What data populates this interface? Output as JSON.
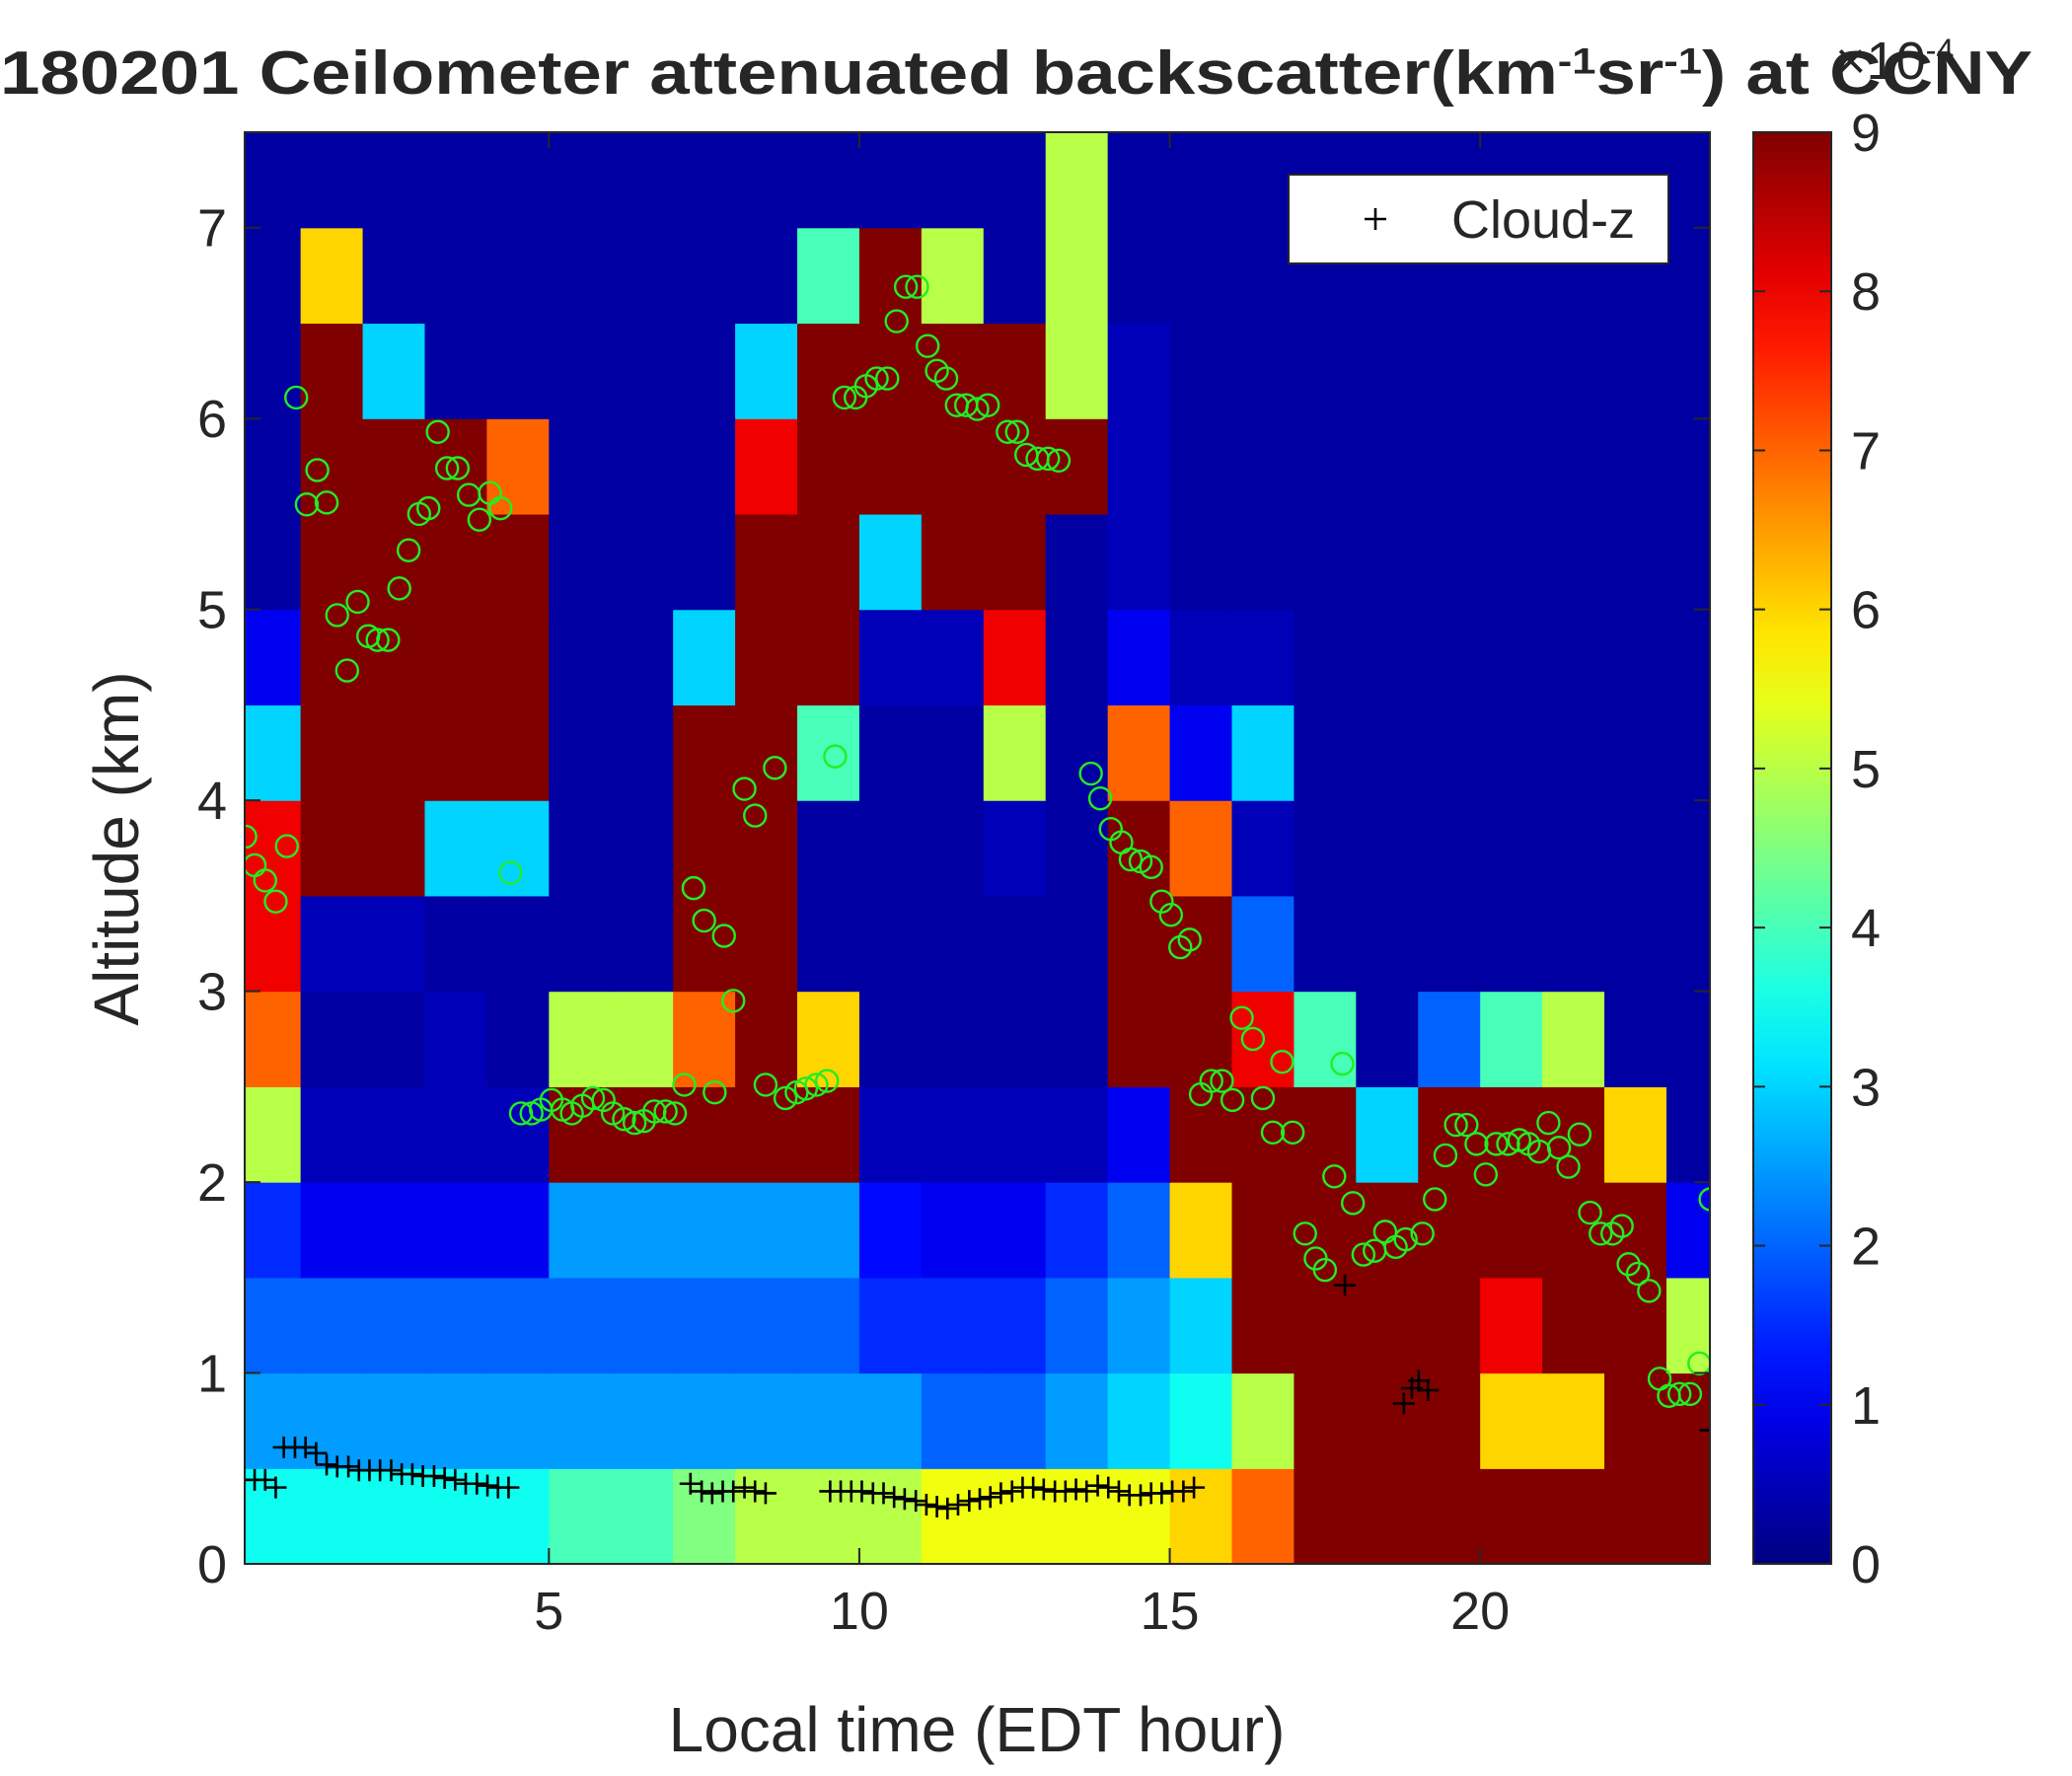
{
  "chart_data": {
    "type": "heatmap",
    "title": [
      "180201 Ceilometer attenuated backscatter(km",
      "-1",
      "sr",
      "-1",
      ") at CCNY"
    ],
    "x_label": "Local time (EDT hour)",
    "y_label": "Altitude (km)",
    "xlim": [
      0.1,
      23.7
    ],
    "xticks": [
      5,
      10,
      15,
      20
    ],
    "ylim": [
      0,
      7.5
    ],
    "yticks": [
      0,
      1,
      2,
      3,
      4,
      5,
      6,
      7
    ],
    "colormap": "jet",
    "clim": [
      0,
      9
    ],
    "cticks": [
      0,
      1,
      2,
      3,
      4,
      5,
      6,
      7,
      8,
      9
    ],
    "colorbar_label": [
      "×10",
      "-4"
    ],
    "xbins": [
      0,
      1,
      2,
      3,
      4,
      5,
      6,
      7,
      8,
      9,
      10,
      11,
      12,
      13,
      14,
      15,
      16,
      17,
      18,
      19,
      20,
      21,
      22,
      23,
      24
    ],
    "ybins": [
      0,
      0.5,
      1,
      1.5,
      2,
      2.5,
      3,
      3.5,
      4,
      4.5,
      5,
      5.5,
      6,
      6.5,
      7,
      7.5
    ],
    "z": [
      [
        3.5,
        3.5,
        3.5,
        3.5,
        3.5,
        4,
        4,
        4.5,
        5,
        5,
        5,
        5.5,
        5.5,
        5.5,
        5.5,
        6,
        7,
        9,
        9,
        9,
        9,
        9,
        9,
        9
      ],
      [
        2.5,
        2.5,
        2.5,
        2.5,
        2.5,
        2.5,
        2.5,
        2.5,
        2.5,
        2.5,
        2.5,
        2,
        2,
        2.5,
        3,
        3.5,
        5,
        9,
        9,
        9,
        6,
        6,
        9,
        9
      ],
      [
        2,
        2,
        2,
        2,
        2,
        2,
        2,
        2,
        2,
        2,
        1.5,
        1.5,
        1.5,
        2,
        2.5,
        3,
        9,
        9,
        9,
        9,
        8,
        9,
        9,
        5
      ],
      [
        1.5,
        1,
        1,
        1,
        1,
        2.5,
        2.5,
        2.5,
        2.5,
        2.5,
        1.2,
        1,
        1,
        1.5,
        2,
        6,
        9,
        9,
        9,
        9,
        9,
        9,
        9,
        1
      ],
      [
        5,
        0.5,
        0.5,
        0.5,
        0.5,
        9,
        9,
        9,
        9,
        9,
        0.5,
        0.5,
        0.5,
        0.5,
        1,
        9,
        9,
        9,
        3,
        9,
        9,
        9,
        6,
        0.3
      ],
      [
        7,
        0.3,
        0.3,
        0.5,
        0.3,
        5,
        5,
        7,
        9,
        6,
        0.3,
        0.3,
        0.3,
        0.3,
        9,
        9,
        8,
        4,
        0.3,
        2,
        4,
        5,
        0.3,
        0.3
      ],
      [
        8,
        0.5,
        0.5,
        0.3,
        0.3,
        0.3,
        0.3,
        9,
        9,
        0.3,
        0.3,
        0.3,
        0.3,
        0.3,
        9,
        9,
        2,
        0.3,
        0.3,
        0.3,
        0.3,
        0.3,
        0.3,
        0.3
      ],
      [
        8,
        9,
        9,
        3,
        3,
        0.3,
        0.3,
        9,
        9,
        0.3,
        0.3,
        0.3,
        0.5,
        0.3,
        9,
        7,
        0.5,
        0.3,
        0.3,
        0.3,
        0.3,
        0.3,
        0.3,
        0.3
      ],
      [
        3,
        9,
        9,
        9,
        9,
        0.3,
        0.3,
        9,
        9,
        4,
        0.3,
        0.3,
        5,
        0.3,
        7,
        1,
        3,
        0.3,
        0.3,
        0.3,
        0.3,
        0.3,
        0.3,
        0.3
      ],
      [
        1,
        9,
        9,
        9,
        9,
        0.3,
        0.3,
        3,
        9,
        9,
        0.5,
        0.5,
        8,
        0.3,
        1,
        0.5,
        0.5,
        0.3,
        0.3,
        0.3,
        0.3,
        0.3,
        0.3,
        0.3
      ],
      [
        0.3,
        9,
        9,
        9,
        9,
        0.3,
        0.3,
        0.3,
        9,
        9,
        3,
        9,
        9,
        0.3,
        0.5,
        0.3,
        0.3,
        0.3,
        0.3,
        0.3,
        0.3,
        0.3,
        0.3,
        0.3
      ],
      [
        0.3,
        9,
        9,
        9,
        7,
        0.3,
        0.3,
        0.3,
        8,
        9,
        9,
        9,
        9,
        9,
        0.5,
        0.3,
        0.3,
        0.3,
        0.3,
        0.3,
        0.3,
        0.3,
        0.3,
        0.3
      ],
      [
        0.3,
        9,
        3,
        0.3,
        0.3,
        0.3,
        0.3,
        0.3,
        3,
        9,
        9,
        9,
        9,
        5,
        0.5,
        0.3,
        0.3,
        0.3,
        0.3,
        0.3,
        0.3,
        0.3,
        0.3,
        0.3
      ],
      [
        0.3,
        6,
        0.3,
        0.3,
        0.3,
        0.3,
        0.3,
        0.3,
        0.3,
        4,
        9,
        5,
        0.3,
        5,
        0.3,
        0.3,
        0.3,
        0.3,
        0.3,
        0.3,
        0.3,
        0.3,
        0.3,
        0.3
      ],
      [
        0.3,
        0.3,
        0.3,
        0.3,
        0.3,
        0.3,
        0.3,
        0.3,
        0.3,
        0.3,
        0.3,
        0.3,
        0.3,
        5,
        0.3,
        0.3,
        0.3,
        0.3,
        0.3,
        0.3,
        0.3,
        0.3,
        0.3,
        0.3
      ]
    ],
    "series": [
      {
        "color": "#22ee22",
        "marker": "o",
        "x": [
          0.11,
          0.26,
          0.43,
          0.6,
          0.78,
          0.93,
          1.1,
          1.27,
          1.42,
          1.59,
          1.75,
          1.92,
          2.09,
          2.24,
          2.41,
          2.59,
          2.74,
          2.91,
          3.06,
          3.21,
          3.36,
          3.53,
          3.71,
          3.88,
          4.05,
          4.22,
          4.38,
          4.55,
          4.72,
          4.87,
          5.04,
          5.22,
          5.37,
          5.54,
          5.71,
          5.88,
          6.03,
          6.21,
          6.38,
          6.53,
          6.7,
          6.88,
          7.03,
          7.18,
          7.33,
          7.5,
          7.67,
          7.82,
          7.97,
          8.15,
          8.32,
          8.49,
          8.64,
          8.81,
          8.99,
          9.14,
          9.31,
          9.48,
          9.61,
          9.76,
          9.94,
          10.11,
          10.28,
          10.45,
          10.6,
          10.75,
          10.93,
          11.1,
          11.25,
          11.4,
          11.57,
          11.72,
          11.9,
          12.07,
          12.39,
          12.54,
          12.69,
          12.87,
          13.04,
          13.21,
          13.73,
          13.88,
          14.05,
          14.22,
          14.37,
          14.53,
          14.7,
          14.87,
          15.02,
          15.17,
          15.32,
          15.5,
          15.67,
          15.84,
          16.01,
          16.16,
          16.34,
          16.5,
          16.66,
          16.81,
          16.98,
          17.18,
          17.35,
          17.5,
          17.65,
          17.78,
          17.95,
          18.12,
          18.3,
          18.47,
          18.64,
          18.8,
          19.07,
          19.27,
          19.44,
          19.61,
          19.78,
          19.94,
          20.09,
          20.26,
          20.45,
          20.63,
          20.78,
          20.95,
          21.1,
          21.27,
          21.42,
          21.6,
          21.77,
          21.94,
          22.13,
          22.28,
          22.39,
          22.54,
          22.72,
          22.89,
          23.04,
          23.21,
          23.38,
          23.53,
          23.71
        ],
        "y": [
          3.81,
          3.66,
          3.58,
          3.47,
          3.76,
          6.11,
          5.55,
          5.73,
          5.56,
          4.97,
          4.68,
          5.04,
          4.86,
          4.84,
          4.84,
          5.11,
          5.31,
          5.5,
          5.53,
          5.93,
          5.74,
          5.74,
          5.6,
          5.47,
          5.61,
          5.53,
          3.62,
          2.36,
          2.36,
          2.38,
          2.43,
          2.38,
          2.36,
          2.4,
          2.44,
          2.43,
          2.36,
          2.33,
          2.31,
          2.32,
          2.37,
          2.37,
          2.36,
          2.51,
          3.54,
          3.37,
          2.47,
          3.29,
          2.95,
          4.06,
          3.92,
          2.51,
          4.17,
          2.44,
          2.47,
          2.49,
          2.51,
          2.53,
          4.23,
          6.11,
          6.11,
          6.17,
          6.21,
          6.21,
          6.51,
          6.69,
          6.69,
          6.38,
          6.25,
          6.21,
          6.07,
          6.07,
          6.05,
          6.07,
          5.93,
          5.93,
          5.81,
          5.79,
          5.79,
          5.78,
          4.14,
          4.01,
          3.85,
          3.78,
          3.69,
          3.68,
          3.65,
          3.47,
          3.4,
          3.23,
          3.27,
          2.46,
          2.53,
          2.53,
          2.43,
          2.86,
          2.75,
          2.44,
          2.26,
          2.63,
          2.26,
          1.73,
          1.6,
          1.54,
          2.03,
          2.62,
          1.89,
          1.62,
          1.64,
          1.74,
          1.66,
          1.7,
          1.73,
          1.91,
          2.14,
          2.3,
          2.3,
          2.2,
          2.04,
          2.2,
          2.2,
          2.22,
          2.2,
          2.16,
          2.31,
          2.18,
          2.08,
          2.25,
          1.84,
          1.73,
          1.73,
          1.77,
          1.57,
          1.52,
          1.43,
          0.97,
          0.88,
          0.89,
          0.89,
          1.05,
          1.91
        ]
      },
      {
        "name": "Cloud-z",
        "color": "#000000",
        "marker": "+",
        "x": [
          0.04,
          0.26,
          0.43,
          0.6,
          0.73,
          0.91,
          1.08,
          1.25,
          1.42,
          1.59,
          1.77,
          1.94,
          2.11,
          2.28,
          2.46,
          2.63,
          2.8,
          2.97,
          3.15,
          3.32,
          3.49,
          3.66,
          3.84,
          4.01,
          4.18,
          4.35,
          7.28,
          7.46,
          7.63,
          7.8,
          7.97,
          8.15,
          8.32,
          8.49,
          9.53,
          9.7,
          9.87,
          10.04,
          10.22,
          10.39,
          10.56,
          10.73,
          10.91,
          11.08,
          11.25,
          11.42,
          11.59,
          11.77,
          11.94,
          12.11,
          12.28,
          12.46,
          12.63,
          12.8,
          12.97,
          13.15,
          13.32,
          13.49,
          13.66,
          13.84,
          14.01,
          14.18,
          14.35,
          14.53,
          14.7,
          14.87,
          15.04,
          15.22,
          15.39,
          17.82,
          18.77,
          18.9,
          19.01,
          19.16,
          23.71
        ],
        "y": [
          0.44,
          0.44,
          0.44,
          0.4,
          0.61,
          0.61,
          0.61,
          0.58,
          0.52,
          0.51,
          0.51,
          0.49,
          0.49,
          0.49,
          0.49,
          0.47,
          0.47,
          0.46,
          0.46,
          0.45,
          0.44,
          0.42,
          0.42,
          0.41,
          0.4,
          0.4,
          0.42,
          0.38,
          0.37,
          0.38,
          0.38,
          0.4,
          0.38,
          0.37,
          0.38,
          0.38,
          0.38,
          0.38,
          0.37,
          0.37,
          0.35,
          0.34,
          0.33,
          0.31,
          0.3,
          0.29,
          0.31,
          0.33,
          0.34,
          0.35,
          0.37,
          0.38,
          0.4,
          0.4,
          0.39,
          0.38,
          0.38,
          0.39,
          0.38,
          0.41,
          0.4,
          0.38,
          0.36,
          0.36,
          0.37,
          0.37,
          0.38,
          0.38,
          0.4,
          1.46,
          0.84,
          0.92,
          0.96,
          0.91,
          0.7
        ]
      }
    ],
    "legend": "upper right"
  }
}
